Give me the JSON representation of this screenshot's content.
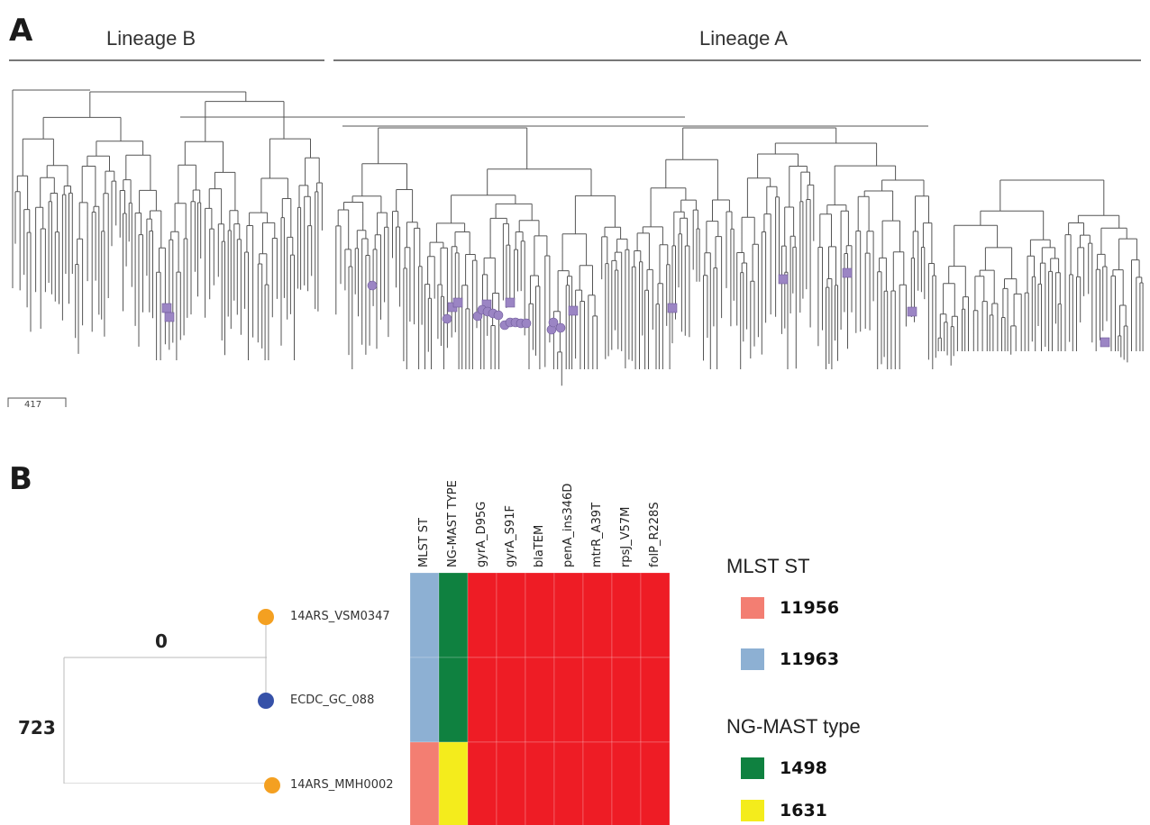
{
  "panelA": {
    "letter": "A",
    "lineage_b": "Lineage B",
    "lineage_a": "Lineage A",
    "scale_label": "417",
    "colors": {
      "branch": "#555555",
      "marker": "#9b85c4",
      "marker_stroke": "#6e5a99"
    }
  },
  "panelB": {
    "letter": "B",
    "tree": {
      "edge_top": "0",
      "edge_left": "723",
      "nodes": [
        {
          "label": "14ARS_VSM0347",
          "color": "#f4a021"
        },
        {
          "label": "ECDC_GC_088",
          "color": "#3651a8"
        },
        {
          "label": "14ARS_MMH0002",
          "color": "#f4a021"
        }
      ]
    },
    "heatmap": {
      "columns": [
        "MLST ST",
        "NG-MAST TYPE",
        "gyrA_D95G",
        "gyrA_S91F",
        "blaTEM",
        "penA_ins346D",
        "mtrR_A39T",
        "rpsJ_V57M",
        "folP_R228S"
      ],
      "rows": [
        [
          "#8db0d3",
          "#0f8140",
          "#ee1c25",
          "#ee1c25",
          "#ee1c25",
          "#ee1c25",
          "#ee1c25",
          "#ee1c25",
          "#ee1c25"
        ],
        [
          "#8db0d3",
          "#0f8140",
          "#ee1c25",
          "#ee1c25",
          "#ee1c25",
          "#ee1c25",
          "#ee1c25",
          "#ee1c25",
          "#ee1c25"
        ],
        [
          "#f37e72",
          "#f4ec1c",
          "#ee1c25",
          "#ee1c25",
          "#ee1c25",
          "#ee1c25",
          "#ee1c25",
          "#ee1c25",
          "#ee1c25"
        ]
      ]
    },
    "legend": {
      "mlst_title": "MLST ST",
      "mlst_items": [
        {
          "value": "11956",
          "color": "#f37e72"
        },
        {
          "value": "11963",
          "color": "#8db0d3"
        }
      ],
      "ngmast_title": "NG-MAST type",
      "ngmast_items": [
        {
          "value": "1498",
          "color": "#0f8140"
        },
        {
          "value": "1631",
          "color": "#f4ec1c"
        }
      ]
    }
  }
}
